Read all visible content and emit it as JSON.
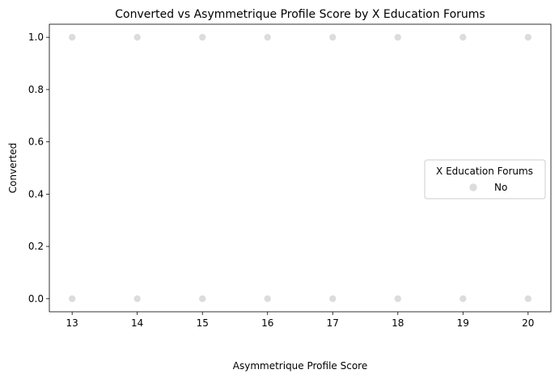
{
  "chart_data": {
    "type": "scatter",
    "title": "Converted vs Asymmetrique Profile Score by X Education Forums",
    "xlabel": "Asymmetrique Profile Score",
    "ylabel": "Converted",
    "xlim": [
      12.65,
      20.35
    ],
    "ylim": [
      -0.05,
      1.05
    ],
    "x_ticks": [
      "13",
      "14",
      "15",
      "16",
      "17",
      "18",
      "19",
      "20"
    ],
    "y_ticks": [
      "0.0",
      "0.2",
      "0.4",
      "0.6",
      "0.8",
      "1.0"
    ],
    "grid": false,
    "legend": {
      "title": "X Education Forums",
      "placement": "center-right",
      "entries": [
        "No"
      ]
    },
    "series": [
      {
        "name": "No",
        "color": "#dcdcdc",
        "points": [
          {
            "x": 13,
            "y": 1
          },
          {
            "x": 14,
            "y": 1
          },
          {
            "x": 15,
            "y": 1
          },
          {
            "x": 16,
            "y": 1
          },
          {
            "x": 17,
            "y": 1
          },
          {
            "x": 18,
            "y": 1
          },
          {
            "x": 19,
            "y": 1
          },
          {
            "x": 20,
            "y": 1
          },
          {
            "x": 13,
            "y": 0
          },
          {
            "x": 14,
            "y": 0
          },
          {
            "x": 15,
            "y": 0
          },
          {
            "x": 16,
            "y": 0
          },
          {
            "x": 17,
            "y": 0
          },
          {
            "x": 18,
            "y": 0
          },
          {
            "x": 19,
            "y": 0
          },
          {
            "x": 20,
            "y": 0
          }
        ]
      }
    ]
  }
}
